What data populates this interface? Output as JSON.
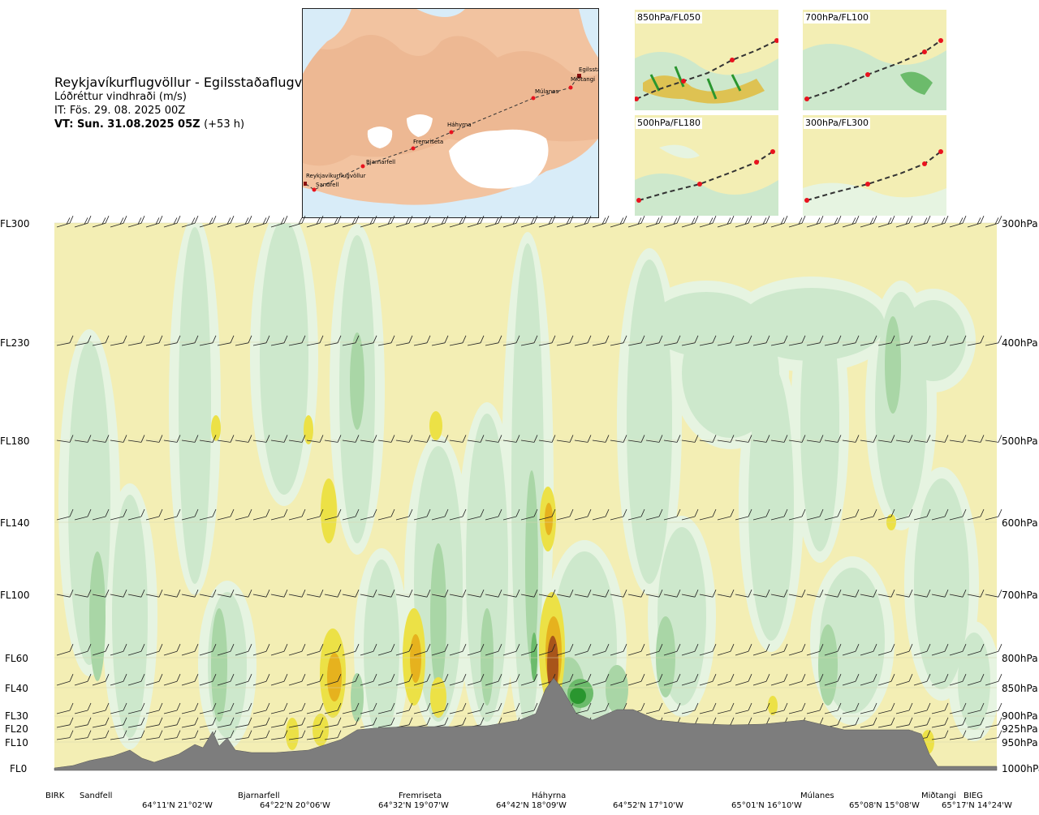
{
  "header": {
    "title": "Reykjavíkurflugvöllur - Egilsstaðaflugvöllur",
    "subtitle": "Lóðréttur vindhraði (m/s)",
    "issue_time": "IT: Fös. 29. 08. 2025 00Z",
    "valid_time": "VT: Sun. 31.08.2025 05Z",
    "lead_time": "(+53 h)"
  },
  "map": {
    "route_points": [
      "Reykjavíkurflugvöllur",
      "Sandfell",
      "Bjarnarfell",
      "Fremriseta",
      "Háhyrna",
      "Múlanes",
      "Miðtangi",
      "Egilsstaðir"
    ]
  },
  "insets": [
    {
      "label": "850hPa/FL050"
    },
    {
      "label": "700hPa/FL100"
    },
    {
      "label": "500hPa/FL180"
    },
    {
      "label": "300hPa/FL300"
    }
  ],
  "chart_data": {
    "type": "heatmap",
    "title": "Lóðréttur vindhraði (m/s)",
    "variable": "vertical wind speed",
    "y_left_ticks": [
      "FL300",
      "FL230",
      "FL180",
      "FL140",
      "FL100",
      "FL60",
      "FL40",
      "FL30",
      "FL20",
      "FL10",
      "FL0"
    ],
    "y_right_ticks": [
      "300hPa",
      "400hPa",
      "500hPa",
      "600hPa",
      "700hPa",
      "800hPa",
      "850hPa",
      "900hPa",
      "925hPa",
      "950hPa",
      "1000hPa"
    ],
    "x_locations": [
      "BIRK",
      "Sandfell",
      "Bjarnarfell",
      "Fremriseta",
      "Háhyrna",
      "Múlanes",
      "Miðtangi",
      "BIEG"
    ],
    "x_coordinates": [
      "64°11'N 21°02'W",
      "64°22'N 20°06'W",
      "64°32'N 19°07'W",
      "64°42'N 18°09'W",
      "64°52'N 17°10'W",
      "65°01'N 16°10'W",
      "65°08'N 15°08'W",
      "65°17'N 14°24'W"
    ],
    "colors": {
      "background": "#f3eeb4",
      "pale_green": "#e6f4e1",
      "light_green": "#cde8cc",
      "mid_green": "#a9d6a6",
      "green": "#6cbb6b",
      "strong_green": "#2a962f",
      "yellow": "#ece146",
      "orange": "#e6b21e",
      "brown": "#a8551a",
      "terrain": "#7d7d7d"
    }
  }
}
